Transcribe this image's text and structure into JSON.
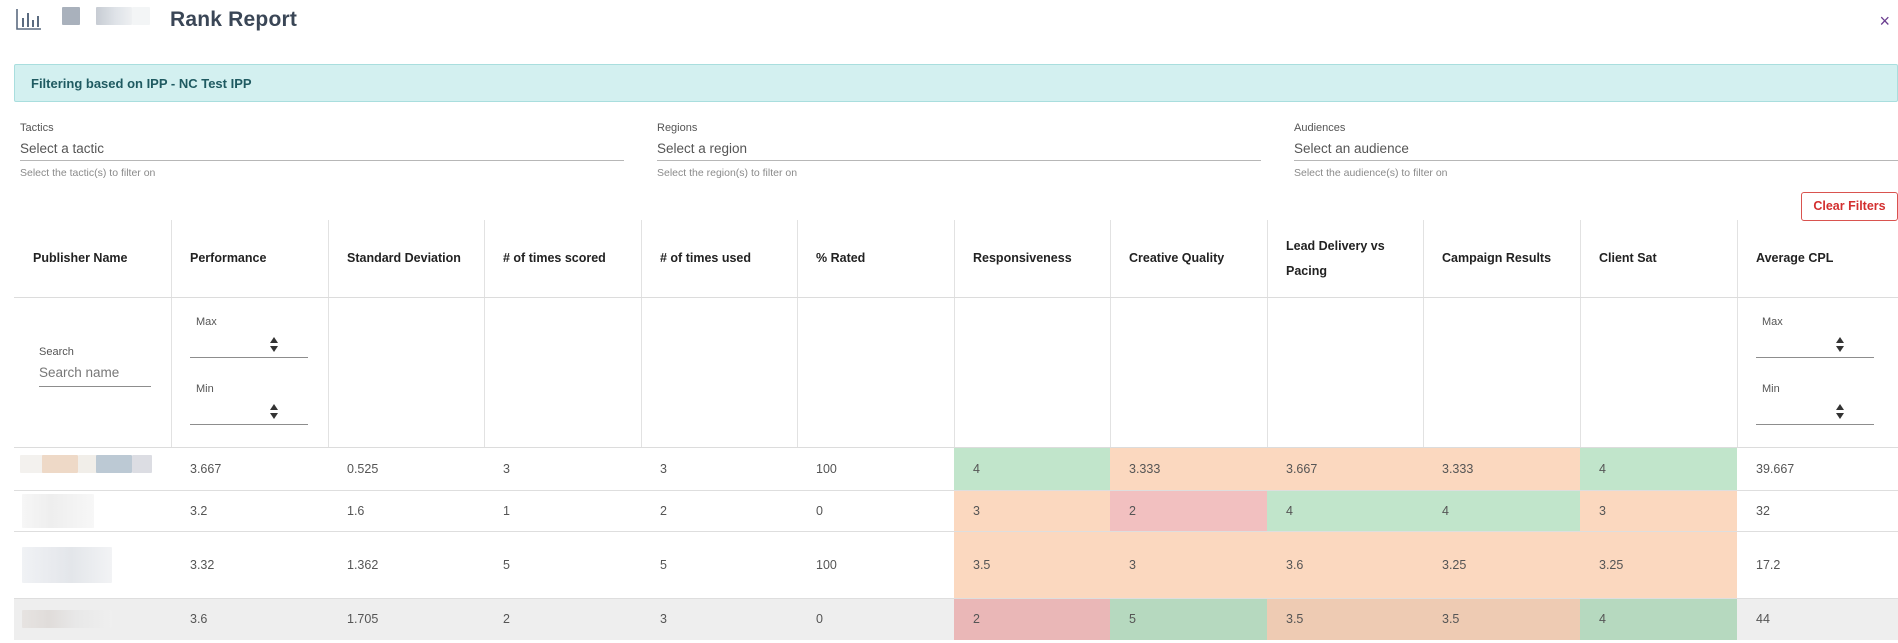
{
  "header": {
    "title": "Rank Report",
    "close_label": "×"
  },
  "banner": {
    "text": "Filtering based on IPP - NC Test IPP"
  },
  "filters": [
    {
      "label": "Tactics",
      "placeholder": "Select a tactic",
      "hint": "Select the tactic(s) to filter on"
    },
    {
      "label": "Regions",
      "placeholder": "Select a region",
      "hint": "Select the region(s) to filter on"
    },
    {
      "label": "Audiences",
      "placeholder": "Select an audience",
      "hint": "Select the audience(s) to filter on"
    }
  ],
  "clear_filters_label": "Clear Filters",
  "table": {
    "columns": [
      "Publisher Name",
      "Performance",
      "Standard Deviation",
      "# of times scored",
      "# of times used",
      "% Rated",
      "Responsiveness",
      "Creative Quality",
      "Lead Delivery vs Pacing",
      "Campaign Results",
      "Client Sat",
      "Average CPL"
    ],
    "search": {
      "label": "Search",
      "placeholder": "Search name"
    },
    "range_filter": {
      "max_label": "Max",
      "min_label": "Min"
    },
    "rows": [
      {
        "cells": [
          "",
          "3.667",
          "0.525",
          "3",
          "3",
          "100",
          "4",
          "3.333",
          "3.667",
          "3.333",
          "4",
          "39.667"
        ]
      },
      {
        "cells": [
          "",
          "3.2",
          "1.6",
          "1",
          "2",
          "0",
          "3",
          "2",
          "4",
          "4",
          "3",
          "32"
        ]
      },
      {
        "cells": [
          "",
          "3.32",
          "1.362",
          "5",
          "5",
          "100",
          "3.5",
          "3",
          "3.6",
          "3.25",
          "3.25",
          "17.2"
        ]
      },
      {
        "cells": [
          "",
          "3.6",
          "1.705",
          "2",
          "3",
          "0",
          "2",
          "5",
          "3.5",
          "3.5",
          "4",
          "44"
        ]
      }
    ]
  },
  "colors": {
    "green": "#c1e5cb",
    "peach": "#fbd8bf",
    "pink": "#f2c0c0",
    "banner": "#d3f0f0",
    "accent_red": "#d32f2f"
  }
}
